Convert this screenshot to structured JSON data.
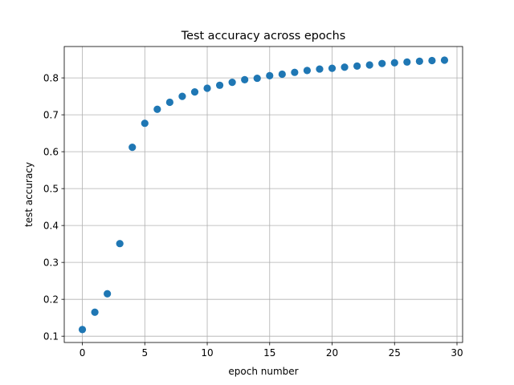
{
  "chart_data": {
    "type": "scatter",
    "title": "Test accuracy across epochs",
    "xlabel": "epoch number",
    "ylabel": "test accuracy",
    "xlim": [
      -1.45,
      30.45
    ],
    "ylim": [
      0.083,
      0.885
    ],
    "x_ticks": [
      0,
      5,
      10,
      15,
      20,
      25,
      30
    ],
    "y_ticks": [
      0.1,
      0.2,
      0.3,
      0.4,
      0.5,
      0.6,
      0.7,
      0.8
    ],
    "x_tick_labels": [
      "0",
      "5",
      "10",
      "15",
      "20",
      "25",
      "30"
    ],
    "y_tick_labels": [
      "0.1",
      "0.2",
      "0.3",
      "0.4",
      "0.5",
      "0.6",
      "0.7",
      "0.8"
    ],
    "grid": true,
    "series": [
      {
        "color": "#1f77b4",
        "x": [
          0,
          1,
          2,
          3,
          4,
          5,
          6,
          7,
          8,
          9,
          10,
          11,
          12,
          13,
          14,
          15,
          16,
          17,
          18,
          19,
          20,
          21,
          22,
          23,
          24,
          25,
          26,
          27,
          28,
          29
        ],
        "y": [
          0.118,
          0.165,
          0.215,
          0.351,
          0.612,
          0.677,
          0.715,
          0.734,
          0.75,
          0.762,
          0.772,
          0.78,
          0.788,
          0.795,
          0.799,
          0.806,
          0.81,
          0.815,
          0.82,
          0.824,
          0.826,
          0.829,
          0.832,
          0.835,
          0.839,
          0.841,
          0.843,
          0.845,
          0.847,
          0.848
        ]
      }
    ]
  }
}
